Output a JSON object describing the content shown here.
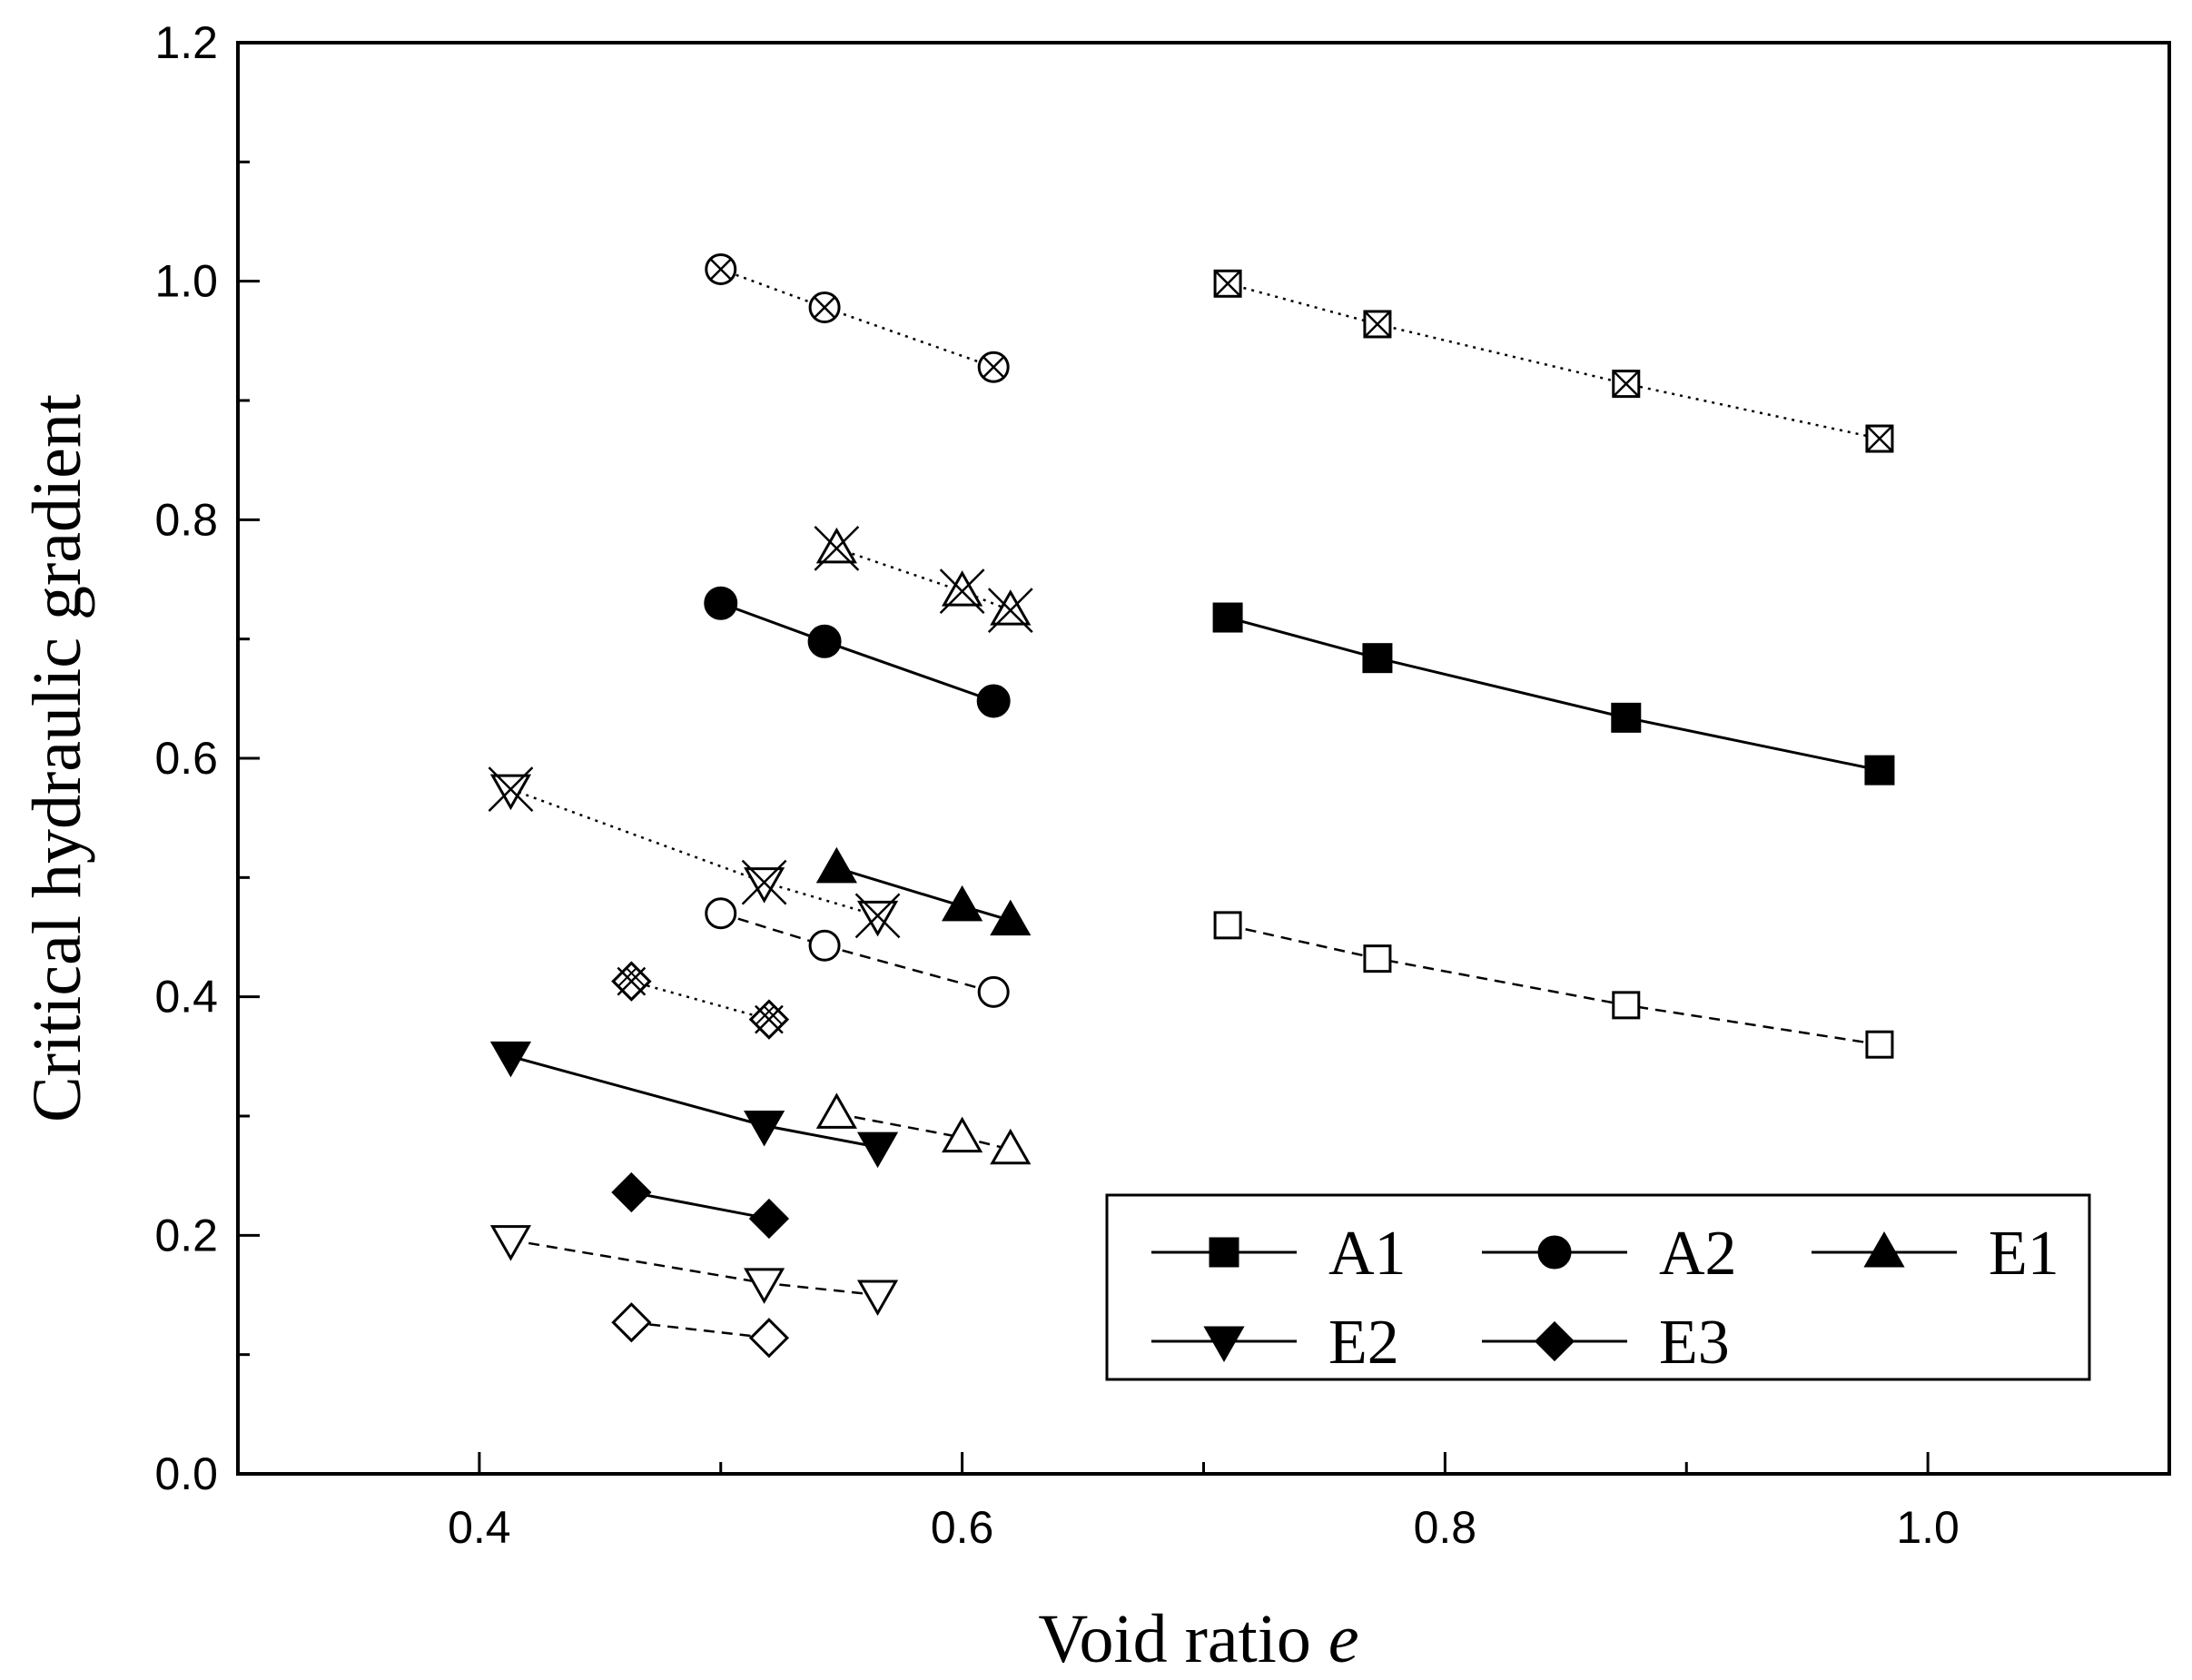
{
  "chart_data": {
    "type": "scatter",
    "title": "",
    "xlabel": "Void ratio",
    "xlabel_var": "e",
    "ylabel": "Critical hydraulic gradient",
    "xlim": [
      0.3,
      1.1
    ],
    "ylim": [
      0.0,
      1.2
    ],
    "x_ticks": [
      0.4,
      0.6,
      0.8,
      1.0
    ],
    "x_tick_labels": [
      "0.4",
      "0.6",
      "0.8",
      "1.0"
    ],
    "y_ticks": [
      0.0,
      0.2,
      0.4,
      0.6,
      0.8,
      1.0,
      1.2
    ],
    "y_tick_labels": [
      "0.0",
      "0.2",
      "0.4",
      "0.6",
      "0.8",
      "1.0",
      "1.2"
    ],
    "grid": false,
    "legend_position": "bottom-right",
    "legend": [
      {
        "label": "A1",
        "marker": "square"
      },
      {
        "label": "A2",
        "marker": "circle"
      },
      {
        "label": "E1",
        "marker": "triangle-up"
      },
      {
        "label": "E2",
        "marker": "triangle-down"
      },
      {
        "label": "E3",
        "marker": "diamond"
      }
    ],
    "series": [
      {
        "name": "A1",
        "style": "solid",
        "marker": "square",
        "fill": "filled",
        "x": [
          0.71,
          0.772,
          0.875,
          0.98
        ],
        "y": [
          0.718,
          0.684,
          0.634,
          0.59
        ]
      },
      {
        "name": "A1 (dashed)",
        "style": "dashed",
        "marker": "square",
        "fill": "open",
        "x": [
          0.71,
          0.772,
          0.875,
          0.98
        ],
        "y": [
          0.46,
          0.432,
          0.393,
          0.36
        ]
      },
      {
        "name": "A1 (dotted)",
        "style": "dotted",
        "marker": "square-x",
        "fill": "open",
        "x": [
          0.71,
          0.772,
          0.875,
          0.98
        ],
        "y": [
          0.998,
          0.964,
          0.914,
          0.868
        ]
      },
      {
        "name": "A2",
        "style": "solid",
        "marker": "circle",
        "fill": "filled",
        "x": [
          0.5,
          0.543,
          0.613
        ],
        "y": [
          0.73,
          0.698,
          0.648
        ]
      },
      {
        "name": "A2 (dashed)",
        "style": "dashed",
        "marker": "circle",
        "fill": "open",
        "x": [
          0.5,
          0.543,
          0.613
        ],
        "y": [
          0.47,
          0.443,
          0.404
        ]
      },
      {
        "name": "A2 (dotted)",
        "style": "dotted",
        "marker": "circle-x",
        "fill": "open",
        "x": [
          0.5,
          0.543,
          0.613
        ],
        "y": [
          1.01,
          0.978,
          0.928
        ]
      },
      {
        "name": "E1",
        "style": "solid",
        "marker": "triangle-up",
        "fill": "filled",
        "x": [
          0.548,
          0.6,
          0.62
        ],
        "y": [
          0.508,
          0.476,
          0.464
        ]
      },
      {
        "name": "E1 (dashed)",
        "style": "dashed",
        "marker": "triangle-up",
        "fill": "open",
        "x": [
          0.548,
          0.6,
          0.62
        ],
        "y": [
          0.302,
          0.282,
          0.272
        ]
      },
      {
        "name": "E1 (dotted)",
        "style": "dotted",
        "marker": "triangle-up-x",
        "fill": "open",
        "x": [
          0.548,
          0.6,
          0.62
        ],
        "y": [
          0.776,
          0.74,
          0.724
        ]
      },
      {
        "name": "E2",
        "style": "solid",
        "marker": "triangle-down",
        "fill": "filled",
        "x": [
          0.413,
          0.518,
          0.565
        ],
        "y": [
          0.35,
          0.292,
          0.274
        ]
      },
      {
        "name": "E2 (dashed)",
        "style": "dashed",
        "marker": "triangle-down",
        "fill": "open",
        "x": [
          0.413,
          0.518,
          0.565
        ],
        "y": [
          0.196,
          0.16,
          0.15
        ]
      },
      {
        "name": "E2 (dotted)",
        "style": "dotted",
        "marker": "triangle-down-x",
        "fill": "open",
        "x": [
          0.413,
          0.518,
          0.565
        ],
        "y": [
          0.574,
          0.496,
          0.468
        ]
      },
      {
        "name": "E3",
        "style": "solid",
        "marker": "diamond",
        "fill": "filled",
        "x": [
          0.463,
          0.52
        ],
        "y": [
          0.236,
          0.214
        ]
      },
      {
        "name": "E3 (dashed)",
        "style": "dashed",
        "marker": "diamond",
        "fill": "open",
        "x": [
          0.463,
          0.52
        ],
        "y": [
          0.127,
          0.114
        ]
      },
      {
        "name": "E3 (dotted)",
        "style": "dotted",
        "marker": "diamond-x",
        "fill": "open",
        "x": [
          0.463,
          0.52
        ],
        "y": [
          0.413,
          0.381
        ]
      }
    ]
  }
}
